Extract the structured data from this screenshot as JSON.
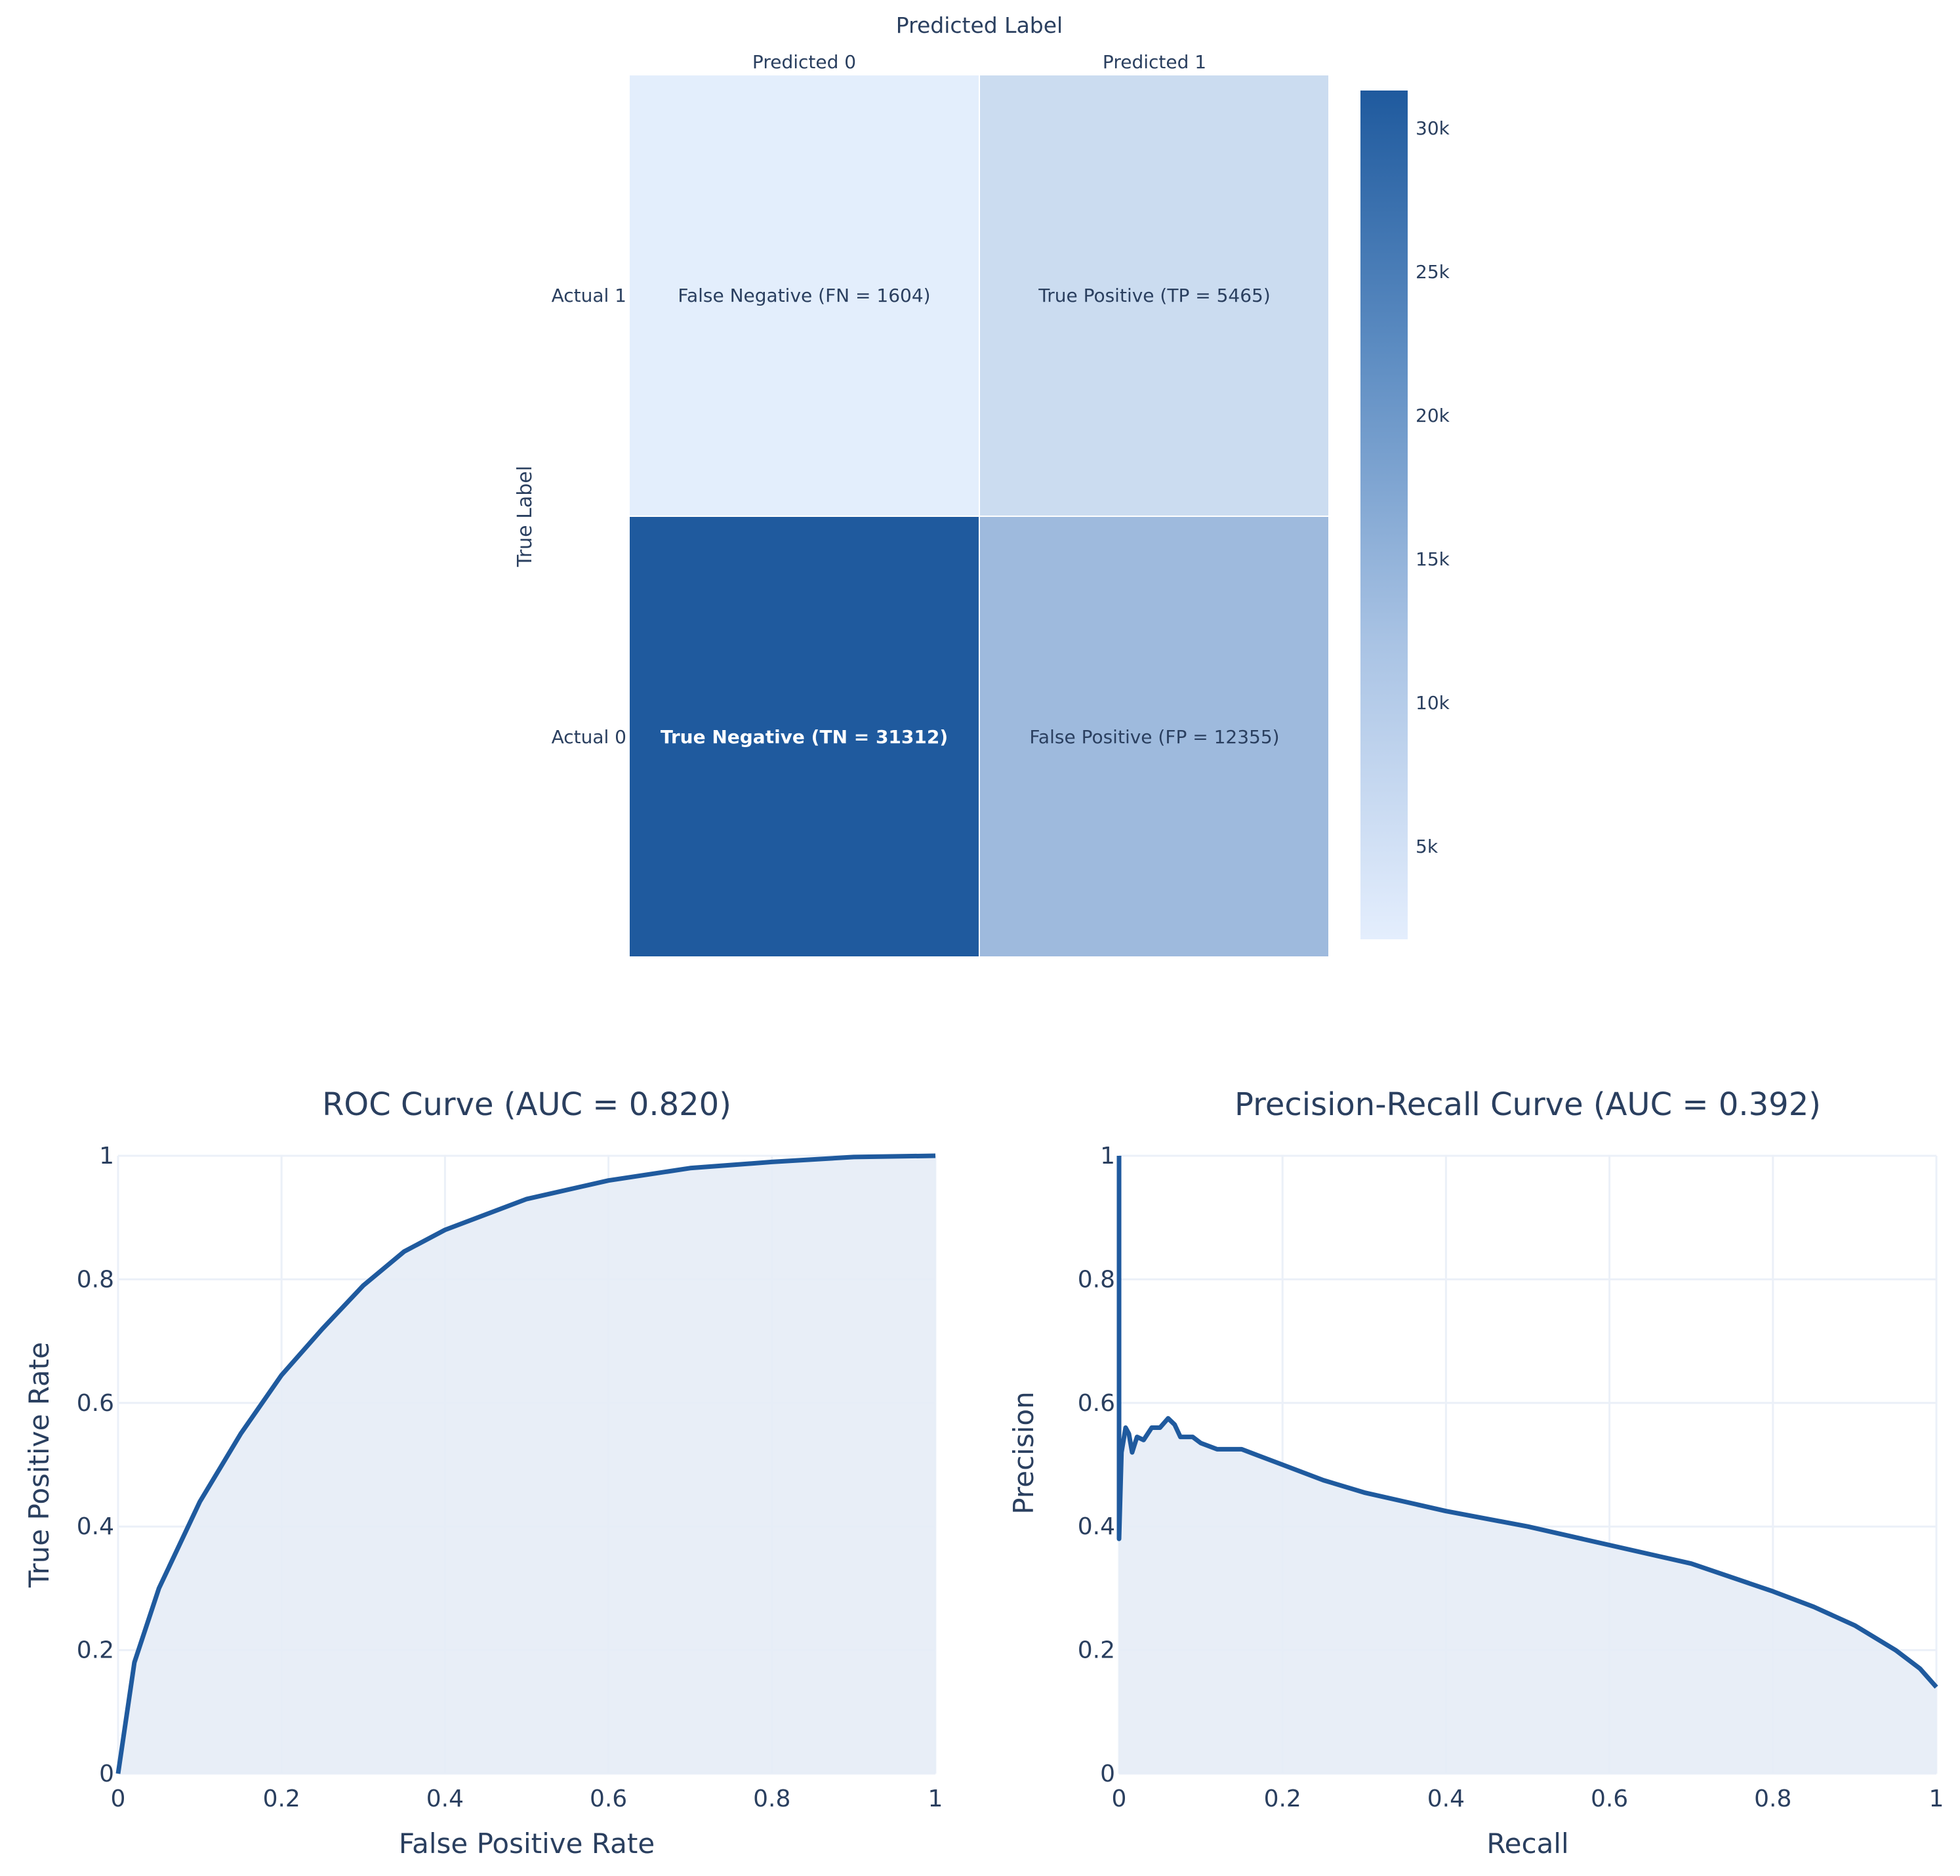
{
  "chart_data": [
    {
      "type": "heatmap",
      "title": "",
      "xlabel": "Predicted Label",
      "ylabel": "True Label",
      "x_categories": [
        "Predicted 0",
        "Predicted 1"
      ],
      "y_categories": [
        "Actual 1",
        "Actual 0"
      ],
      "z": [
        [
          1604,
          5465
        ],
        [
          31312,
          12355
        ]
      ],
      "annotations": [
        [
          "False Negative (FN = 1604)",
          "True Positive (TP = 5465)"
        ],
        [
          "True Negative (TN = 31312)",
          "False Positive (FP = 12355)"
        ]
      ],
      "cell_colors": [
        [
          "#e3eefc",
          "#cbdcf0"
        ],
        [
          "#1f5a9e",
          "#9ebadd"
        ]
      ],
      "colorscale": [
        "#e4eefd",
        "#1f5a9e"
      ],
      "colorbar": {
        "ticks": [
          "30k",
          "25k",
          "20k",
          "15k",
          "10k",
          "5k"
        ],
        "range": [
          1604,
          31312
        ]
      }
    },
    {
      "type": "area",
      "title": "ROC Curve (AUC = 0.820)",
      "xlabel": "False Positive Rate",
      "ylabel": "True Positive Rate",
      "xlim": [
        0,
        1
      ],
      "ylim": [
        0,
        1
      ],
      "xticks": [
        "0",
        "0.2",
        "0.4",
        "0.6",
        "0.8",
        "1"
      ],
      "yticks": [
        "0",
        "0.2",
        "0.4",
        "0.6",
        "0.8",
        "1"
      ],
      "grid": true,
      "series": [
        {
          "name": "ROC",
          "x": [
            0,
            0.02,
            0.05,
            0.1,
            0.15,
            0.2,
            0.25,
            0.3,
            0.35,
            0.4,
            0.5,
            0.6,
            0.7,
            0.8,
            0.9,
            1
          ],
          "y": [
            0,
            0.18,
            0.3,
            0.44,
            0.55,
            0.645,
            0.72,
            0.79,
            0.845,
            0.88,
            0.93,
            0.96,
            0.98,
            0.99,
            0.998,
            1
          ]
        }
      ],
      "line_color": "#1f5a9e",
      "fill_color": "#e5ecf6"
    },
    {
      "type": "area",
      "title": "Precision-Recall Curve (AUC = 0.392)",
      "xlabel": "Recall",
      "ylabel": "Precision",
      "xlim": [
        0,
        1
      ],
      "ylim": [
        0,
        1
      ],
      "xticks": [
        "0",
        "0.2",
        "0.4",
        "0.6",
        "0.8",
        "1"
      ],
      "yticks": [
        "0",
        "0.2",
        "0.4",
        "0.6",
        "0.8",
        "1"
      ],
      "grid": true,
      "series": [
        {
          "name": "PR",
          "x": [
            0,
            0,
            0.003,
            0.008,
            0.012,
            0.016,
            0.022,
            0.03,
            0.04,
            0.05,
            0.06,
            0.068,
            0.075,
            0.09,
            0.1,
            0.12,
            0.15,
            0.17,
            0.2,
            0.25,
            0.3,
            0.35,
            0.4,
            0.5,
            0.6,
            0.7,
            0.8,
            0.85,
            0.9,
            0.95,
            0.98,
            1
          ],
          "y": [
            1,
            0.38,
            0.52,
            0.56,
            0.55,
            0.52,
            0.545,
            0.54,
            0.56,
            0.56,
            0.575,
            0.565,
            0.545,
            0.545,
            0.535,
            0.525,
            0.525,
            0.515,
            0.5,
            0.475,
            0.455,
            0.44,
            0.425,
            0.4,
            0.37,
            0.34,
            0.295,
            0.27,
            0.24,
            0.2,
            0.17,
            0.14
          ]
        }
      ],
      "line_color": "#1f5a9e",
      "fill_color": "#e5ecf6"
    }
  ]
}
